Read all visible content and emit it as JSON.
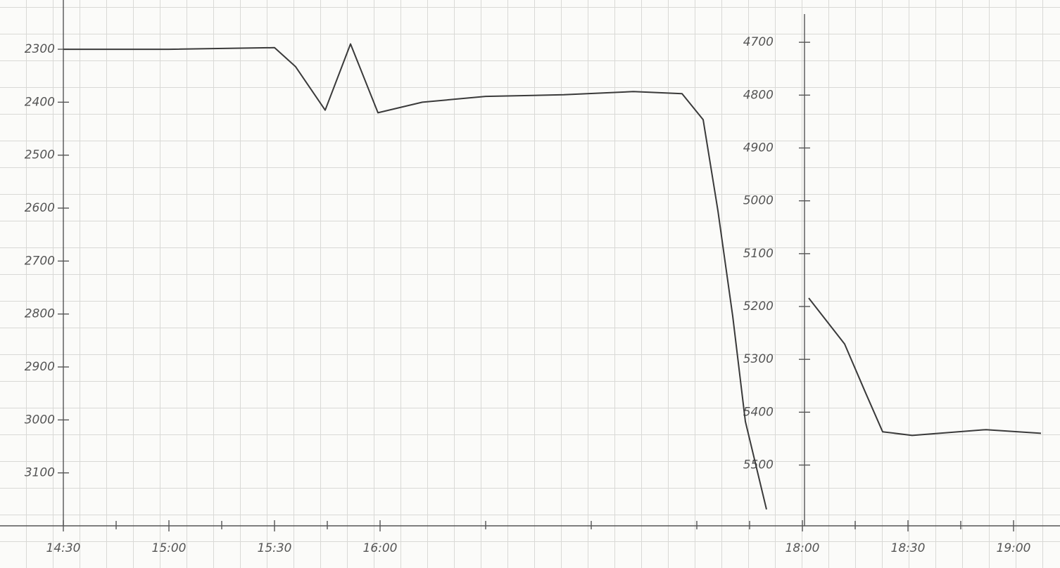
{
  "chart_data": {
    "type": "line",
    "xlim": [
      14.2,
      19.22
    ],
    "xticks": [
      {
        "value": 14.5,
        "label": "14:30"
      },
      {
        "value": 15,
        "label": "15:00"
      },
      {
        "value": 15.5,
        "label": "15:30"
      },
      {
        "value": 16,
        "label": "16:00"
      },
      {
        "value": 18,
        "label": "18:00"
      },
      {
        "value": 18.5,
        "label": "18:30"
      },
      {
        "value": 19,
        "label": "19:00"
      }
    ],
    "xminorticks": [
      14.75,
      15.25,
      15.75,
      16.5,
      17,
      17.5,
      17.75,
      18.25,
      18.75
    ],
    "ylim": [
      3200,
      2207
    ],
    "yticks": [
      2300,
      2400,
      2500,
      2600,
      2700,
      2800,
      2900,
      3000,
      3100
    ],
    "y2lim": [
      5615,
      4620
    ],
    "y2ticks": [
      4700,
      4800,
      4900,
      5000,
      5100,
      5200,
      5300,
      5400,
      5500
    ],
    "grid": true,
    "series": [
      {
        "color": "#3a3a3a",
        "x": [
          14.5,
          15.0,
          15.5,
          15.6,
          15.74,
          15.86,
          15.99,
          16.2,
          16.5,
          16.87,
          17.2,
          17.43,
          17.53,
          17.6,
          17.67,
          17.73,
          17.83
        ],
        "values": [
          2300,
          2300,
          2297,
          2333,
          2415,
          2290,
          2420,
          2400,
          2389,
          2386,
          2380,
          2384,
          2433,
          2605,
          2804,
          3003,
          3169
        ]
      },
      {
        "color": "#3a3a3a",
        "axis": "y2",
        "x": [
          18.03,
          18.2,
          18.3,
          18.38,
          18.52,
          18.87,
          19.13
        ],
        "values": [
          5184,
          5271,
          5364,
          5437,
          5444,
          5433,
          5440
        ]
      }
    ]
  }
}
